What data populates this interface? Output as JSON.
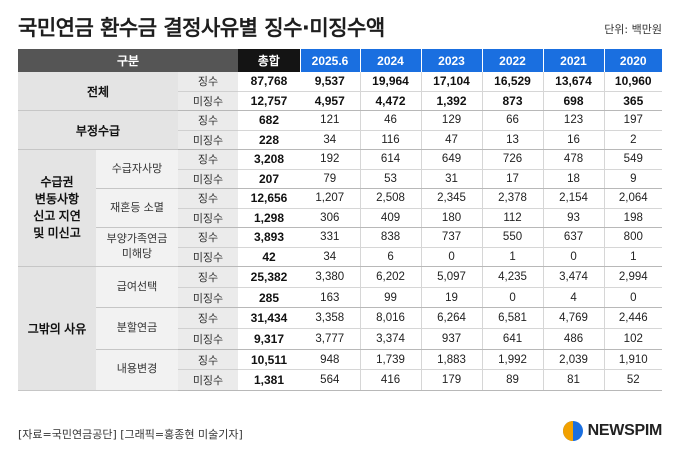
{
  "title": "국민연금 환수금 결정사유별 징수·미징수액",
  "unit": "단위: 백만원",
  "header": {
    "category": "구분",
    "total": "총합",
    "years": [
      "2025.6",
      "2024",
      "2023",
      "2022",
      "2021",
      "2020"
    ]
  },
  "rows": {
    "all": {
      "label": "전체",
      "collected": {
        "kind": "징수",
        "total": "87,768",
        "values": [
          "9,537",
          "19,964",
          "17,104",
          "16,529",
          "13,674",
          "10,960"
        ]
      },
      "uncollected": {
        "kind": "미징수",
        "total": "12,757",
        "values": [
          "4,957",
          "4,472",
          "1,392",
          "873",
          "698",
          "365"
        ]
      }
    },
    "fraud": {
      "label": "부정수급",
      "collected": {
        "kind": "징수",
        "total": "682",
        "values": [
          "121",
          "46",
          "129",
          "66",
          "123",
          "197"
        ]
      },
      "uncollected": {
        "kind": "미징수",
        "total": "228",
        "values": [
          "34",
          "116",
          "47",
          "13",
          "16",
          "2"
        ]
      }
    },
    "late_report": {
      "label_lines": [
        "수급권",
        "변동사항",
        "신고 지연",
        "및 미신고"
      ],
      "death": {
        "label": "수급자사망",
        "collected": {
          "kind": "징수",
          "total": "3,208",
          "values": [
            "192",
            "614",
            "649",
            "726",
            "478",
            "549"
          ]
        },
        "uncollected": {
          "kind": "미징수",
          "total": "207",
          "values": [
            "79",
            "53",
            "31",
            "17",
            "18",
            "9"
          ]
        }
      },
      "remarriage": {
        "label": "재혼등 소멸",
        "collected": {
          "kind": "징수",
          "total": "12,656",
          "values": [
            "1,207",
            "2,508",
            "2,345",
            "2,378",
            "2,154",
            "2,064"
          ]
        },
        "uncollected": {
          "kind": "미징수",
          "total": "1,298",
          "values": [
            "306",
            "409",
            "180",
            "112",
            "93",
            "198"
          ]
        }
      },
      "dependent": {
        "label_lines": [
          "부양가족연금",
          "미해당"
        ],
        "collected": {
          "kind": "징수",
          "total": "3,893",
          "values": [
            "331",
            "838",
            "737",
            "550",
            "637",
            "800"
          ]
        },
        "uncollected": {
          "kind": "미징수",
          "total": "42",
          "values": [
            "34",
            "6",
            "0",
            "1",
            "0",
            "1"
          ]
        }
      }
    },
    "other": {
      "label": "그밖의 사유",
      "benefit_choice": {
        "label": "급여선택",
        "collected": {
          "kind": "징수",
          "total": "25,382",
          "values": [
            "3,380",
            "6,202",
            "5,097",
            "4,235",
            "3,474",
            "2,994"
          ]
        },
        "uncollected": {
          "kind": "미징수",
          "total": "285",
          "values": [
            "163",
            "99",
            "19",
            "0",
            "4",
            "0"
          ]
        }
      },
      "split_pension": {
        "label": "분할연금",
        "collected": {
          "kind": "징수",
          "total": "31,434",
          "values": [
            "3,358",
            "8,016",
            "6,264",
            "6,581",
            "4,769",
            "2,446"
          ]
        },
        "uncollected": {
          "kind": "미징수",
          "total": "9,317",
          "values": [
            "3,777",
            "3,374",
            "937",
            "641",
            "486",
            "102"
          ]
        }
      },
      "change": {
        "label": "내용변경",
        "collected": {
          "kind": "징수",
          "total": "10,511",
          "values": [
            "948",
            "1,739",
            "1,883",
            "1,992",
            "2,039",
            "1,910"
          ]
        },
        "uncollected": {
          "kind": "미징수",
          "total": "1,381",
          "values": [
            "564",
            "416",
            "179",
            "89",
            "81",
            "52"
          ]
        }
      }
    }
  },
  "footer": {
    "source": "[자료=국민연금공단] [그래픽=홍종현 미술기자]",
    "logo_text": "NEWSPIM"
  },
  "colors": {
    "header_category": "#555555",
    "header_total": "#141414",
    "header_year": "#1a6fe0",
    "group_bg": "#e4e4e4",
    "kind_bg": "#ebebeb"
  }
}
